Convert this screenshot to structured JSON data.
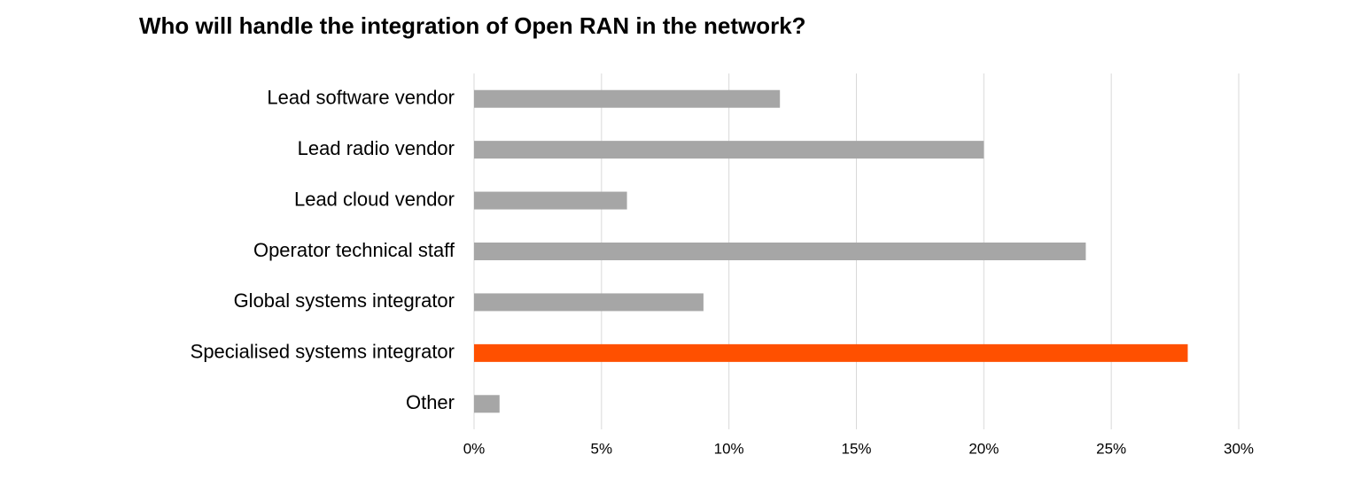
{
  "chart_data": {
    "type": "bar",
    "orientation": "horizontal",
    "title": "Who will handle the integration of Open RAN in the network?",
    "categories": [
      "Lead software vendor",
      "Lead radio vendor",
      "Lead cloud vendor",
      "Operator technical staff",
      "Global systems integrator",
      "Specialised systems integrator",
      "Other"
    ],
    "values": [
      12,
      20,
      6,
      24,
      9,
      28,
      1
    ],
    "colors": [
      "#a6a6a6",
      "#a6a6a6",
      "#a6a6a6",
      "#a6a6a6",
      "#a6a6a6",
      "#ff5000",
      "#a6a6a6"
    ],
    "xlim": [
      0,
      30
    ],
    "xticks": [
      {
        "value": 0,
        "label": "0%"
      },
      {
        "value": 5,
        "label": "5%"
      },
      {
        "value": 10,
        "label": "10%"
      },
      {
        "value": 15,
        "label": "15%"
      },
      {
        "value": 20,
        "label": "20%"
      },
      {
        "value": 25,
        "label": "25%"
      },
      {
        "value": 30,
        "label": "30%"
      }
    ],
    "grid": true
  }
}
